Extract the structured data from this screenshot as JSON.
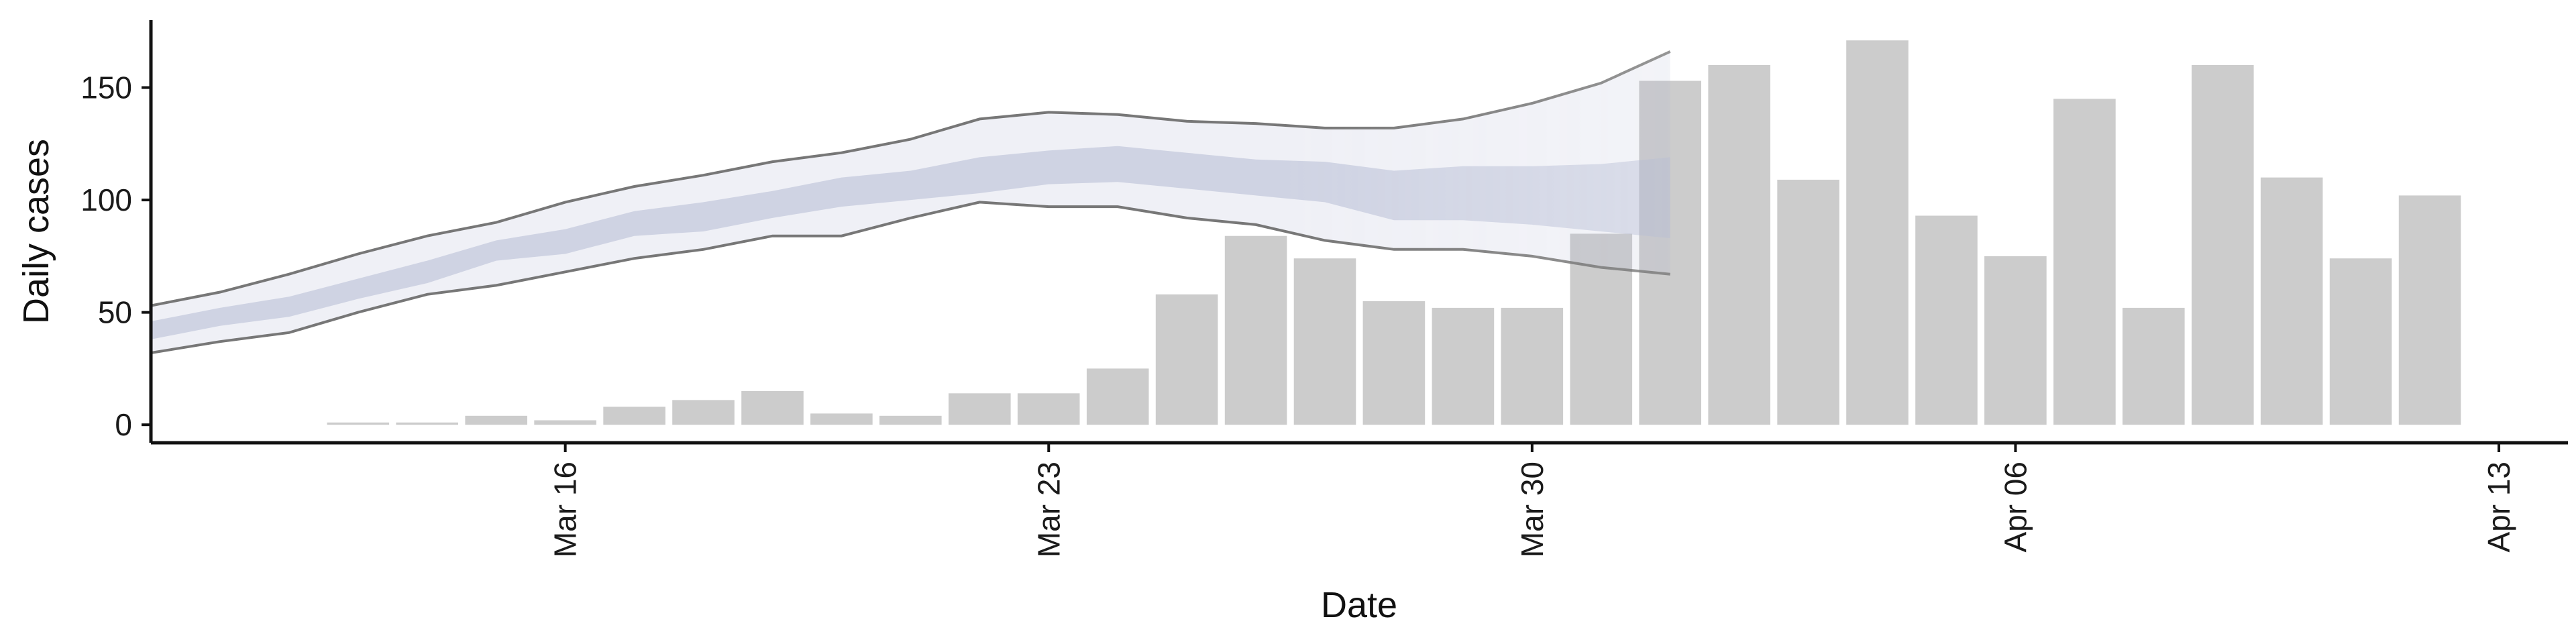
{
  "chart_data": {
    "type": "bar",
    "title": "",
    "xlabel": "Date",
    "ylabel": "Daily cases",
    "x_range": [
      "2020-03-10",
      "2020-04-14"
    ],
    "ylim": [
      -8,
      180
    ],
    "y_ticks": [
      0,
      50,
      100,
      150
    ],
    "x_ticks": [
      {
        "date": "2020-03-16",
        "label": "Mar 16"
      },
      {
        "date": "2020-03-23",
        "label": "Mar 23"
      },
      {
        "date": "2020-03-30",
        "label": "Mar 30"
      },
      {
        "date": "2020-04-06",
        "label": "Apr 06"
      },
      {
        "date": "2020-04-13",
        "label": "Apr 13"
      }
    ],
    "grid": false,
    "legend": "none",
    "bars": {
      "color": "#cccccc",
      "points": [
        {
          "date": "2020-03-13",
          "value": 1
        },
        {
          "date": "2020-03-14",
          "value": 1
        },
        {
          "date": "2020-03-15",
          "value": 4
        },
        {
          "date": "2020-03-16",
          "value": 2
        },
        {
          "date": "2020-03-17",
          "value": 8
        },
        {
          "date": "2020-03-18",
          "value": 11
        },
        {
          "date": "2020-03-19",
          "value": 15
        },
        {
          "date": "2020-03-20",
          "value": 5
        },
        {
          "date": "2020-03-21",
          "value": 4
        },
        {
          "date": "2020-03-22",
          "value": 14
        },
        {
          "date": "2020-03-23",
          "value": 14
        },
        {
          "date": "2020-03-24",
          "value": 25
        },
        {
          "date": "2020-03-25",
          "value": 58
        },
        {
          "date": "2020-03-26",
          "value": 84
        },
        {
          "date": "2020-03-27",
          "value": 74
        },
        {
          "date": "2020-03-28",
          "value": 55
        },
        {
          "date": "2020-03-29",
          "value": 52
        },
        {
          "date": "2020-03-30",
          "value": 52
        },
        {
          "date": "2020-03-31",
          "value": 85
        },
        {
          "date": "2020-04-01",
          "value": 153
        },
        {
          "date": "2020-04-02",
          "value": 160
        },
        {
          "date": "2020-04-03",
          "value": 109
        },
        {
          "date": "2020-04-04",
          "value": 171
        },
        {
          "date": "2020-04-05",
          "value": 93
        },
        {
          "date": "2020-04-06",
          "value": 75
        },
        {
          "date": "2020-04-07",
          "value": 145
        },
        {
          "date": "2020-04-08",
          "value": 52
        },
        {
          "date": "2020-04-09",
          "value": 160
        },
        {
          "date": "2020-04-10",
          "value": 110
        },
        {
          "date": "2020-04-11",
          "value": 74
        },
        {
          "date": "2020-04-12",
          "value": 102
        }
      ]
    },
    "forecast_bands": {
      "color": "#b4bcd4",
      "outline_color": "#777777",
      "x": [
        "2020-03-10",
        "2020-03-11",
        "2020-03-12",
        "2020-03-13",
        "2020-03-14",
        "2020-03-15",
        "2020-03-16",
        "2020-03-17",
        "2020-03-18",
        "2020-03-19",
        "2020-03-20",
        "2020-03-21",
        "2020-03-22",
        "2020-03-23",
        "2020-03-24",
        "2020-03-25",
        "2020-03-26",
        "2020-03-27",
        "2020-03-28",
        "2020-03-29",
        "2020-03-30",
        "2020-03-31",
        "2020-04-01",
        "2020-04-02",
        "2020-04-03"
      ],
      "outer_upper": [
        53,
        59,
        67,
        76,
        84,
        90,
        99,
        106,
        111,
        117,
        121,
        127,
        136,
        139,
        138,
        135,
        134,
        132,
        132,
        136,
        143,
        152,
        166,
        null,
        null
      ],
      "outer_lower": [
        32,
        37,
        41,
        50,
        58,
        62,
        68,
        74,
        78,
        84,
        84,
        92,
        99,
        97,
        97,
        92,
        89,
        82,
        78,
        78,
        75,
        70,
        67,
        null,
        null
      ],
      "inner_upper": [
        46,
        52,
        57,
        65,
        73,
        82,
        87,
        95,
        99,
        104,
        110,
        113,
        119,
        122,
        124,
        121,
        118,
        117,
        113,
        115,
        115,
        116,
        119,
        null,
        null
      ],
      "inner_lower": [
        38,
        44,
        48,
        56,
        63,
        73,
        76,
        84,
        86,
        92,
        97,
        100,
        103,
        107,
        108,
        105,
        102,
        99,
        91,
        91,
        89,
        86,
        83,
        null,
        null
      ]
    }
  }
}
